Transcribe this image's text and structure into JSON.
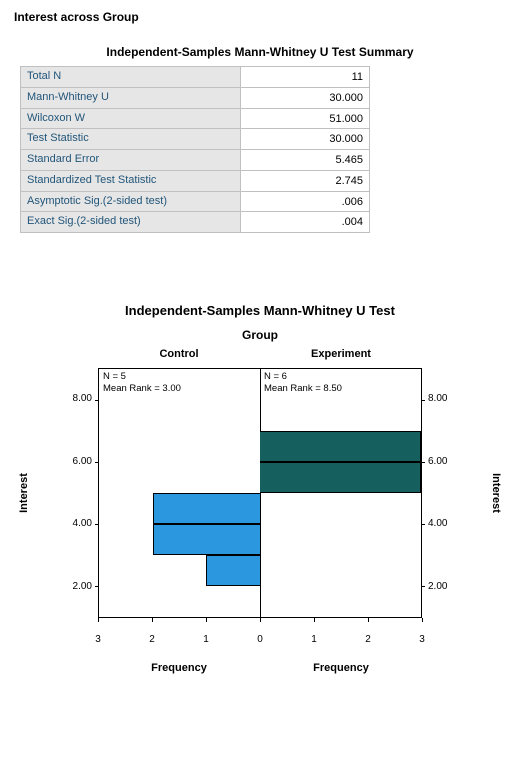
{
  "page_title": "Interest across Group",
  "table": {
    "title": "Independent-Samples Mann-Whitney U Test Summary",
    "rows": [
      {
        "label": "Total N",
        "value": "11"
      },
      {
        "label": "Mann-Whitney U",
        "value": "30.000"
      },
      {
        "label": "Wilcoxon W",
        "value": "51.000"
      },
      {
        "label": "Test Statistic",
        "value": "30.000"
      },
      {
        "label": "Standard Error",
        "value": "5.465"
      },
      {
        "label": "Standardized Test Statistic",
        "value": "2.745"
      },
      {
        "label": "Asymptotic Sig.(2-sided test)",
        "value": ".006"
      },
      {
        "label": "Exact Sig.(2-sided test)",
        "value": ".004"
      }
    ],
    "label_color": "#22567a",
    "label_bg": "#e6e6e6",
    "border_color": "#c0c0c0"
  },
  "chart": {
    "title": "Independent-Samples Mann-Whitney U Test",
    "group_label": "Group",
    "y_axis_label": "Interest",
    "x_axis_label": "Frequency",
    "y_min": 1.0,
    "y_max": 9.0,
    "y_ticks": [
      2.0,
      4.0,
      6.0,
      8.0
    ],
    "y_tick_labels": [
      "2.00",
      "4.00",
      "6.00",
      "8.00"
    ],
    "x_max": 3,
    "x_ticks": [
      0,
      1,
      2,
      3
    ],
    "panels": {
      "left": {
        "label": "Control",
        "annotation_lines": [
          "N = 5",
          "Mean Rank = 3.00"
        ],
        "color": "#2a97df",
        "bars": [
          {
            "y0": 2.0,
            "y1": 3.0,
            "freq": 1
          },
          {
            "y0": 3.0,
            "y1": 4.0,
            "freq": 2
          },
          {
            "y0": 4.0,
            "y1": 5.0,
            "freq": 2
          }
        ]
      },
      "right": {
        "label": "Experiment",
        "annotation_lines": [
          "N = 6",
          "Mean Rank = 8.50"
        ],
        "color": "#155f5f",
        "bars": [
          {
            "y0": 5.0,
            "y1": 6.0,
            "freq": 3
          },
          {
            "y0": 6.0,
            "y1": 7.0,
            "freq": 3
          }
        ]
      }
    }
  }
}
